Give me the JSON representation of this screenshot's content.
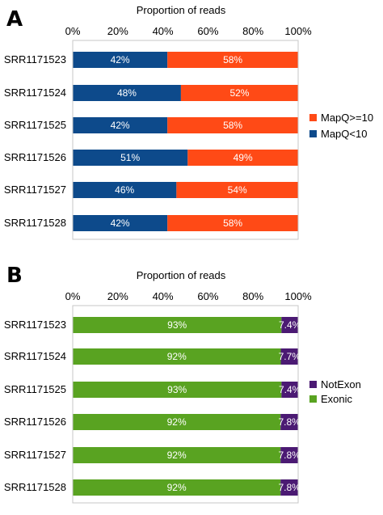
{
  "chart_data": [
    {
      "type": "bar",
      "orientation": "horizontal",
      "stacked": true,
      "panel_label": "A",
      "title": "Proportion of reads",
      "categories": [
        "SRR1171523",
        "SRR1171524",
        "SRR1171525",
        "SRR1171526",
        "SRR1171527",
        "SRR1171528"
      ],
      "xlim": [
        0,
        100
      ],
      "x_ticks": [
        "0%",
        "20%",
        "40%",
        "60%",
        "80%",
        "100%"
      ],
      "grid": false,
      "legend": "right",
      "series": [
        {
          "name": "MapQ<10",
          "color": "#0d4a8b",
          "values": [
            42,
            48,
            42,
            51,
            46,
            42
          ],
          "labels": [
            "42%",
            "48%",
            "42%",
            "51%",
            "46%",
            "42%"
          ]
        },
        {
          "name": "MapQ>=10",
          "color": "#ff4a16",
          "values": [
            58,
            52,
            58,
            49,
            54,
            58
          ],
          "labels": [
            "58%",
            "52%",
            "58%",
            "49%",
            "54%",
            "58%"
          ]
        }
      ],
      "legend_order": [
        "MapQ>=10",
        "MapQ<10"
      ]
    },
    {
      "type": "bar",
      "orientation": "horizontal",
      "stacked": true,
      "panel_label": "B",
      "title": "Proportion of reads",
      "categories": [
        "SRR1171523",
        "SRR1171524",
        "SRR1171525",
        "SRR1171526",
        "SRR1171527",
        "SRR1171528"
      ],
      "xlim": [
        0,
        100
      ],
      "x_ticks": [
        "0%",
        "20%",
        "40%",
        "60%",
        "80%",
        "100%"
      ],
      "grid": false,
      "legend": "right",
      "series": [
        {
          "name": "Exonic",
          "color": "#59a321",
          "values": [
            92.6,
            92.3,
            92.6,
            92.2,
            92.2,
            92.2
          ],
          "labels": [
            "93%",
            "92%",
            "93%",
            "92%",
            "92%",
            "92%"
          ]
        },
        {
          "name": "NotExon",
          "color": "#4b1a73",
          "values": [
            7.4,
            7.7,
            7.4,
            7.8,
            7.8,
            7.8
          ],
          "labels": [
            "7.4%",
            "7.7%",
            "7.4%",
            "7.8%",
            "7.8%",
            "7.8%"
          ]
        }
      ],
      "legend_order": [
        "NotExon",
        "Exonic"
      ]
    }
  ]
}
